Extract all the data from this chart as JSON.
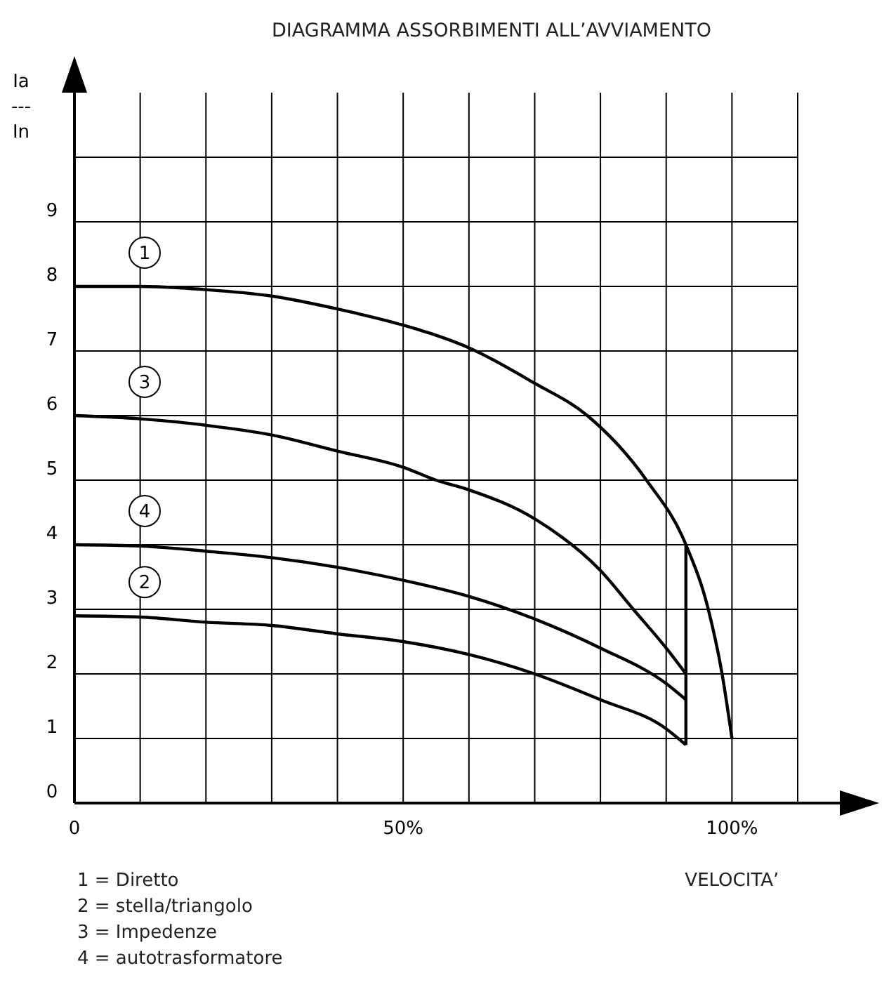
{
  "chart_data": {
    "type": "line",
    "title": "DIAGRAMMA ASSORBIMENTI ALL’AVVIAMENTO",
    "xlabel": "VELOCITA’",
    "ylabel": "Ia\n---\nIn",
    "x": [
      0,
      10,
      20,
      30,
      40,
      50,
      60,
      70,
      78,
      87,
      93,
      96.4,
      98.5,
      100
    ],
    "xlim": [
      0,
      110
    ],
    "ylim": [
      0,
      11
    ],
    "xticks": [
      {
        "value": 0,
        "label": "0"
      },
      {
        "value": 10,
        "label": null
      },
      {
        "value": 20,
        "label": null
      },
      {
        "value": 30,
        "label": null
      },
      {
        "value": 40,
        "label": null
      },
      {
        "value": 50,
        "label": "50%"
      },
      {
        "value": 60,
        "label": null
      },
      {
        "value": 70,
        "label": null
      },
      {
        "value": 80,
        "label": null
      },
      {
        "value": 90,
        "label": null
      },
      {
        "value": 100,
        "label": "100%"
      },
      {
        "value": 110,
        "label": null
      }
    ],
    "yticks": [
      0,
      1,
      2,
      3,
      4,
      5,
      6,
      7,
      8,
      9,
      {
        "value": 10,
        "label": null
      }
    ],
    "grid": true,
    "marker": "none",
    "line_style": "solid",
    "series": [
      {
        "name": "1",
        "color": "#000000",
        "values": [
          8,
          8,
          7.95,
          7.85,
          7.65,
          7.4,
          7.05,
          6.5,
          6,
          5,
          4,
          3,
          2,
          1
        ]
      },
      {
        "name": "3",
        "color": "#000000",
        "x": [
          0,
          10,
          20,
          30,
          40,
          50,
          55,
          60,
          70,
          80,
          85,
          90,
          93
        ],
        "values": [
          6,
          5.95,
          5.85,
          5.7,
          5.45,
          5.2,
          5,
          4.85,
          4.4,
          3.6,
          3,
          2.4,
          2
        ]
      },
      {
        "name": "4",
        "color": "#000000",
        "x": [
          0,
          10,
          20,
          30,
          40,
          50,
          60,
          70,
          80,
          90,
          93
        ],
        "values": [
          4,
          3.98,
          3.9,
          3.8,
          3.65,
          3.45,
          3.2,
          2.85,
          2.4,
          1.85,
          1.6
        ]
      },
      {
        "name": "2",
        "color": "#000000",
        "x": [
          0,
          10,
          20,
          30,
          40,
          50,
          60,
          70,
          80,
          90,
          93
        ],
        "values": [
          2.9,
          2.88,
          2.8,
          2.75,
          2.62,
          2.5,
          2.3,
          2,
          1.6,
          1.15,
          0.9
        ]
      },
      {
        "type": "line",
        "color": "#000000",
        "x": [
          93,
          93
        ],
        "values": [
          0.9,
          4
        ]
      }
    ],
    "annotations": [
      "1 = Diretto",
      "2 = stella/triangolo",
      "3 = Impedenze",
      "4 = autotrasformatore"
    ]
  }
}
